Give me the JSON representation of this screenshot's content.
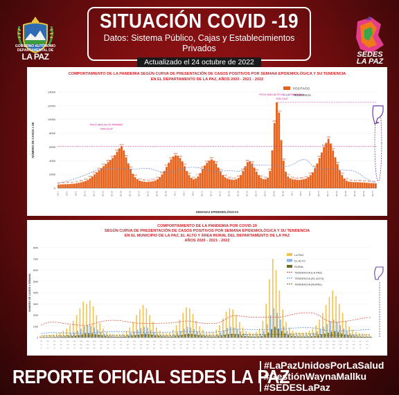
{
  "header": {
    "crest_caption": "GOBIERNO AUTÓNOMO DEPARTAMENTAL DE",
    "crest_city": "LA PAZ",
    "title": "SITUACIÓN COVID -19",
    "subtitle": "Datos: Sistema Público, Cajas y Establecimientos Privados",
    "updated": "Actualizado el  24  octubre de 2022",
    "logo_name_1": "SEDES",
    "logo_name_2": "LA PAZ"
  },
  "footer": {
    "title": "REPORTE OFICIAL SEDES LA PAZ",
    "hashtags": [
      "#LaPazUnidosPorLaSalud",
      "#GestiónWaynaMallku",
      "#SEDESLaPaz"
    ]
  },
  "colors": {
    "positivos": "#e8611a",
    "tendencia": "#6f8fd6",
    "lapaz": "#f2c14e",
    "elalto": "#8ab4e8",
    "rural": "#6b6b1e",
    "title_red": "#d41f26",
    "annot": "#d4148c"
  },
  "chart_data": [
    {
      "type": "bar",
      "title": "COMPORTAMIENTO DE LA PANDEMIA SEGÚN CURVA DE PRESENTACIÓN DE CASOS POSITIVOS POR SEMANA EPIDEMIOLÓGICA Y SU TENDENCIA",
      "subtitle": "EN EL DEPARTAMENTO DE LA PAZ, AÑOS 2020 - 2021 - 2022",
      "xlabel": "SEMANAS EPIDEMIOLÓGICAS",
      "ylabel": "NÚMERO DE CASOS x SE",
      "ylim": [
        0,
        14000
      ],
      "yticks": [
        "0",
        "2000",
        "4000",
        "6000",
        "8000",
        "10000",
        "12000",
        "14000"
      ],
      "legend": [
        "POSITIVOS",
        "TENDENCIA"
      ],
      "legend_position": "top-right",
      "annotations": [
        {
          "text": "PICO MAS ALTO PRIMER",
          "text2": "\"1RA OLA\"",
          "x": 18
        },
        {
          "text": "PICO MAS ALTO DE LA PANDEMIA",
          "text2": "\"4TA OLA\"",
          "x": 96
        }
      ],
      "values": [
        520,
        540,
        560,
        570,
        580,
        600,
        620,
        650,
        700,
        780,
        850,
        950,
        1050,
        1200,
        1450,
        1700,
        2000,
        2300,
        2600,
        2900,
        3200,
        3500,
        3800,
        4100,
        4400,
        4800,
        5300,
        5800,
        6100,
        5500,
        4500,
        3600,
        2800,
        2100,
        1600,
        1300,
        1100,
        1000,
        950,
        900,
        920,
        950,
        1000,
        1100,
        1300,
        1600,
        2000,
        2500,
        3100,
        3700,
        4200,
        4600,
        4800,
        4700,
        4400,
        3900,
        3200,
        2500,
        1900,
        1500,
        1300,
        1400,
        1700,
        2200,
        2800,
        3300,
        3700,
        4000,
        4200,
        4000,
        3600,
        3000,
        2400,
        1900,
        1600,
        1400,
        1300,
        1250,
        1200,
        1300,
        1500,
        1900,
        2500,
        3200,
        3800,
        3900,
        3600,
        3000,
        2400,
        1900,
        1500,
        1300,
        1300,
        1500,
        2500,
        5500,
        9500,
        12500,
        11000,
        7000,
        4000,
        2400,
        1700,
        1400,
        1300,
        1250,
        1200,
        1200,
        1250,
        1300,
        1400,
        1600,
        1900,
        2300,
        2900,
        3600,
        4400,
        5200,
        6000,
        6600,
        7200,
        6500,
        5500,
        4500,
        3500,
        2600,
        1900,
        1400,
        1100,
        950,
        900,
        880,
        870,
        860,
        850,
        820,
        800,
        780,
        760,
        740,
        720,
        700
      ]
    },
    {
      "type": "bar",
      "title": "COMPORTAMIENTO DE LA PANDEMIA POR COVID-19",
      "subtitle": "SEGÚN CURVA DE PRESENTACIÓN DE CASOS POSITIVOS POR SEMANA EPIDEMIOLÓGICA Y SU TENDENCIA",
      "subtitle2": "EN EL  MUNICIPIO DE LA PAZ, EL ALTO Y ÁREA RURAL DEL DEPARTAMENTO DE LA PAZ",
      "subtitle3": "AÑOS 2020 - 2021 - 2022",
      "ylabel": "NÚMERO DE CASOS x SEMANA",
      "ylim": [
        0,
        8000
      ],
      "yticks": [
        "0",
        "1000",
        "2000",
        "3000",
        "4000",
        "5000",
        "6000",
        "7000",
        "8000"
      ],
      "legend": [
        "LA PAZ",
        "EL ALTO",
        "RURAL",
        "TENDENCIA (LA PAZ)",
        "TENDENCIA (EL ALTO)",
        "TENDENCIA (RURAL)"
      ],
      "legend_position": "top-right",
      "series": [
        {
          "name": "LA PAZ",
          "values": [
            150,
            180,
            200,
            250,
            300,
            380,
            450,
            600,
            800,
            1100,
            1500,
            2000,
            2600,
            3200,
            3000,
            3300,
            2800,
            2000,
            1300,
            800,
            500,
            350,
            300,
            280,
            300,
            400,
            600,
            900,
            1400,
            2000,
            2500,
            2900,
            2600,
            2000,
            1400,
            900,
            600,
            450,
            400,
            450,
            700,
            1100,
            1600,
            2200,
            2700,
            2600,
            2100,
            1500,
            1000,
            700,
            500,
            450,
            500,
            700,
            1100,
            1700,
            2300,
            2600,
            2500,
            2000,
            1400,
            900,
            600,
            450,
            400,
            500,
            800,
            1500,
            3000,
            5200,
            7000,
            6000,
            4200,
            2500,
            1400,
            900,
            600,
            500,
            450,
            450,
            500,
            600,
            800,
            1100,
            1600,
            2200,
            2900,
            3600,
            4200,
            3700,
            3000,
            2200,
            1500,
            1000,
            700,
            500,
            400,
            350,
            300,
            250
          ]
        },
        {
          "name": "EL ALTO",
          "values": [
            50,
            60,
            70,
            80,
            100,
            120,
            150,
            200,
            260,
            340,
            450,
            600,
            800,
            1000,
            1100,
            1050,
            900,
            700,
            500,
            350,
            250,
            180,
            150,
            140,
            150,
            200,
            280,
            400,
            550,
            700,
            850,
            950,
            880,
            700,
            500,
            350,
            250,
            200,
            180,
            200,
            300,
            450,
            600,
            800,
            950,
            900,
            750,
            550,
            400,
            300,
            220,
            200,
            220,
            300,
            450,
            650,
            850,
            950,
            900,
            750,
            550,
            380,
            280,
            220,
            200,
            240,
            350,
            600,
            1200,
            2000,
            2600,
            2200,
            1600,
            1000,
            600,
            400,
            300,
            250,
            230,
            230,
            260,
            320,
            420,
            560,
            750,
            950,
            1200,
            1450,
            1600,
            1400,
            1100,
            800,
            550,
            380,
            280,
            220,
            180,
            160,
            140,
            120
          ]
        },
        {
          "name": "RURAL",
          "values": [
            20,
            25,
            30,
            35,
            40,
            50,
            60,
            80,
            100,
            130,
            170,
            220,
            280,
            350,
            380,
            360,
            300,
            240,
            180,
            130,
            100,
            80,
            70,
            65,
            70,
            90,
            120,
            160,
            210,
            260,
            310,
            340,
            320,
            260,
            200,
            150,
            110,
            90,
            80,
            90,
            130,
            180,
            240,
            300,
            350,
            330,
            280,
            210,
            160,
            120,
            90,
            80,
            90,
            120,
            170,
            240,
            300,
            330,
            310,
            260,
            200,
            140,
            110,
            90,
            80,
            95,
            140,
            240,
            450,
            750,
            950,
            800,
            600,
            380,
            240,
            160,
            120,
            100,
            90,
            90,
            100,
            120,
            160,
            210,
            280,
            350,
            430,
            500,
            550,
            480,
            380,
            280,
            200,
            150,
            110,
            90,
            75,
            65,
            55,
            50
          ]
        }
      ]
    }
  ]
}
